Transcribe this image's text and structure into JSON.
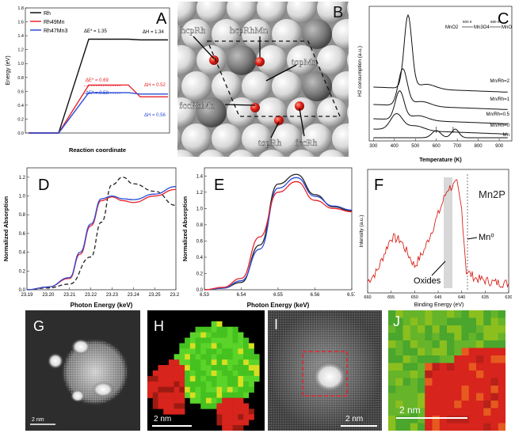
{
  "colors": {
    "black": "#111111",
    "red": "#e8242b",
    "blue": "#2b4bd6",
    "green": "#45c21f",
    "tem_red": "#d7241c"
  },
  "panelA": {
    "letter": "A",
    "ylabel": "Energy (eV)",
    "xlabel": "Reaction coordinate",
    "legend": [
      "Rh",
      "Rh49Mn",
      "Rh47Mn3"
    ],
    "ea": [
      "ΔE* = 1.35",
      "ΔE* = 0.69",
      "ΔE* = 0.58"
    ],
    "dh": [
      "ΔH = 1.34",
      "ΔH = 0.52",
      "ΔH = 0.56"
    ],
    "yticks": [
      "0.0",
      "0.2",
      "0.4",
      "0.6",
      "0.8",
      "1.0",
      "1.2",
      "1.4",
      "1.6",
      "1.8"
    ]
  },
  "panelB": {
    "letter": "B",
    "labels": [
      "hcpRh",
      "hcpRhMn",
      "topMn",
      "fccRhMn",
      "topRh",
      "fccRh"
    ]
  },
  "panelC": {
    "letter": "C",
    "ylabel": "H2 consumption (a.u.)",
    "xlabel": "Temperature (K)",
    "scheme": {
      "a": "MnO2",
      "b": "Mn3O4",
      "c": "MnO",
      "t1": "600 K",
      "t2": "680 K"
    },
    "curves": [
      "Mn/Rh=2",
      "Mn/Rh=1",
      "Mn/Rh=0.5",
      "Mn/Rh=0",
      "Mn"
    ],
    "xticks": [
      "300",
      "400",
      "500",
      "600",
      "700",
      "800",
      "900"
    ]
  },
  "panelD": {
    "letter": "D",
    "ylabel": "Normalized Absorption",
    "xlabel": "Photon Energy (keV)",
    "xticks": [
      "23.19",
      "23.20",
      "23.21",
      "23.22",
      "23.23",
      "23.24",
      "23.25",
      "23.26"
    ],
    "yticks": [
      "0.0",
      "0.2",
      "0.4",
      "0.6",
      "0.8",
      "1.0",
      "1.2"
    ]
  },
  "panelE": {
    "letter": "E",
    "ylabel": "Normalized Absorption",
    "xlabel": "Photon Energy (keV)",
    "xticks": [
      "6.53",
      "6.54",
      "6.55",
      "6.56",
      "6.57"
    ],
    "yticks": [
      "0.0",
      "0.2",
      "0.4",
      "0.6",
      "0.8",
      "1.0",
      "1.2",
      "1.4"
    ]
  },
  "panelF": {
    "letter": "F",
    "title": "Mn2P",
    "ylabel": "Intensity (a.u.)",
    "xlabel": "Binding Energy (eV)",
    "mn0": "Mn⁰",
    "oxides": "Oxides",
    "xticks": [
      "660",
      "655",
      "650",
      "645",
      "640",
      "635",
      "630"
    ]
  },
  "panelG": {
    "letter": "G",
    "scale": "2 nm"
  },
  "panelH": {
    "letter": "H",
    "scale": "2 nm"
  },
  "panelI": {
    "letter": "I",
    "scale": "2 nm"
  },
  "panelJ": {
    "letter": "J",
    "scale": "2 nm"
  },
  "chart_data": [
    {
      "panel": "A",
      "type": "line",
      "xlabel": "Reaction coordinate",
      "ylabel": "Energy (eV)",
      "ylim": [
        0,
        1.8
      ],
      "series": [
        {
          "name": "Rh",
          "x": [
            0,
            1,
            2,
            3
          ],
          "values": [
            0.0,
            1.35,
            1.34,
            1.34
          ]
        },
        {
          "name": "Rh49Mn",
          "x": [
            0,
            1,
            2,
            3
          ],
          "values": [
            0.0,
            0.69,
            0.52,
            0.52
          ]
        },
        {
          "name": "Rh47Mn3",
          "x": [
            0,
            1,
            2,
            3
          ],
          "values": [
            0.0,
            0.58,
            0.56,
            0.56
          ]
        }
      ]
    },
    {
      "panel": "C",
      "type": "line",
      "xlabel": "Temperature (K)",
      "ylabel": "H2 consumption (a.u.)",
      "xlim": [
        280,
        960
      ],
      "series": [
        {
          "name": "Mn/Rh=2",
          "peak_x": 465
        },
        {
          "name": "Mn/Rh=1",
          "peak_x": 440
        },
        {
          "name": "Mn/Rh=0.5",
          "peak_x": 425
        },
        {
          "name": "Mn/Rh=0",
          "peak_x": 410
        },
        {
          "name": "Mn",
          "peak_x": [
            600,
            680
          ]
        }
      ]
    },
    {
      "panel": "D",
      "type": "line",
      "xlabel": "Photon Energy (keV)",
      "ylabel": "Normalized Absorption",
      "xlim": [
        23.19,
        23.26
      ],
      "ylim": [
        0,
        1.3
      ],
      "series": [
        {
          "name": "",
          "x": [
            23.19,
            23.2,
            23.21,
            23.22,
            23.225,
            23.23,
            23.235,
            23.24,
            23.25,
            23.26
          ],
          "values": [
            0.0,
            0.02,
            0.06,
            0.35,
            0.72,
            1.12,
            1.2,
            1.13,
            1.05,
            0.9
          ]
        },
        {
          "name": "",
          "x": [
            23.19,
            23.2,
            23.21,
            23.215,
            23.22,
            23.225,
            23.23,
            23.235,
            23.24,
            23.25,
            23.26
          ],
          "values": [
            0.0,
            0.03,
            0.12,
            0.38,
            0.68,
            0.95,
            0.99,
            0.95,
            0.93,
            1.0,
            1.07
          ]
        },
        {
          "name": "",
          "x": [
            23.19,
            23.2,
            23.21,
            23.215,
            23.22,
            23.225,
            23.23,
            23.235,
            23.24,
            23.25,
            23.26
          ],
          "values": [
            0.0,
            0.03,
            0.13,
            0.4,
            0.7,
            0.97,
            1.0,
            0.97,
            0.96,
            1.02,
            1.1
          ]
        }
      ]
    },
    {
      "panel": "E",
      "type": "line",
      "xlabel": "Photon Energy (keV)",
      "ylabel": "Normalized Absorption",
      "xlim": [
        6.53,
        6.57
      ],
      "ylim": [
        0,
        1.5
      ],
      "series": [
        {
          "name": "",
          "x": [
            6.53,
            6.535,
            6.54,
            6.545,
            6.55,
            6.555,
            6.56,
            6.565,
            6.57
          ],
          "values": [
            0.0,
            0.02,
            0.09,
            0.55,
            1.3,
            1.42,
            1.17,
            1.02,
            0.97
          ]
        },
        {
          "name": "",
          "x": [
            6.53,
            6.535,
            6.54,
            6.545,
            6.55,
            6.555,
            6.56,
            6.565,
            6.57
          ],
          "values": [
            0.0,
            0.02,
            0.11,
            0.5,
            1.25,
            1.38,
            1.15,
            1.03,
            0.98
          ]
        },
        {
          "name": "",
          "x": [
            6.53,
            6.535,
            6.54,
            6.545,
            6.55,
            6.555,
            6.56,
            6.565,
            6.57
          ],
          "values": [
            0.0,
            0.03,
            0.14,
            0.65,
            1.2,
            1.33,
            1.1,
            1.0,
            0.96
          ]
        }
      ]
    },
    {
      "panel": "F",
      "type": "line",
      "xlabel": "Binding Energy (eV)",
      "ylabel": "Intensity (a.u.)",
      "xlim": [
        660,
        630
      ],
      "series": [
        {
          "name": "",
          "x": [
            660,
            658,
            655,
            653,
            650,
            648,
            645,
            643,
            641,
            640,
            639,
            637,
            635,
            633,
            630
          ],
          "values": [
            0.05,
            0.15,
            0.48,
            0.45,
            0.2,
            0.35,
            0.7,
            0.95,
            1.0,
            0.75,
            0.15,
            0.08,
            0.06,
            0.04,
            0.03
          ]
        }
      ]
    }
  ]
}
